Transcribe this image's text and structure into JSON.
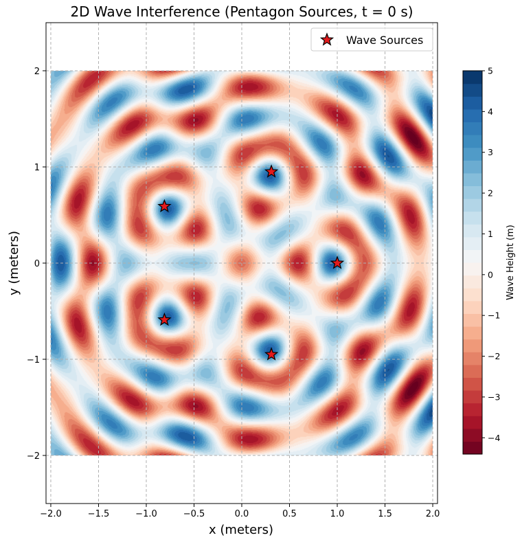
{
  "chart_data": [
    {
      "type": "heatmap",
      "title": "2D Wave Interference (Pentagon Sources, t = 0 s)",
      "xlabel": "x (meters)",
      "ylabel": "y (meters)",
      "xlim": [
        -2.05,
        2.05
      ],
      "ylim": [
        -2.5,
        2.5
      ],
      "field_extent": {
        "x": [
          -2,
          2
        ],
        "y": [
          -2,
          2
        ]
      },
      "x_ticks": [
        "−2.0",
        "−1.5",
        "−1.0",
        "−0.5",
        "0.0",
        "0.5",
        "1.0",
        "1.5",
        "2.0"
      ],
      "x_tick_values": [
        -2,
        -1.5,
        -1,
        -0.5,
        0,
        0.5,
        1,
        1.5,
        2
      ],
      "y_ticks": [
        "−2",
        "−1",
        "0",
        "1",
        "2"
      ],
      "y_tick_values": [
        -2,
        -1,
        0,
        1,
        2
      ],
      "grid": true,
      "legend_position": "top-right",
      "wave": {
        "wavenumber": 10.5,
        "amplitude": 1
      },
      "series": [
        {
          "name": "Wave Sources",
          "marker": "star",
          "color": "#e31a1c",
          "points": [
            {
              "x": 1.0,
              "y": 0.0
            },
            {
              "x": 0.31,
              "y": 0.95
            },
            {
              "x": -0.81,
              "y": 0.59
            },
            {
              "x": -0.81,
              "y": -0.59
            },
            {
              "x": 0.31,
              "y": -0.95
            }
          ]
        }
      ]
    },
    {
      "type": "colorbar",
      "label": "Wave Height (m)",
      "range": [
        -4.4,
        5
      ],
      "tick_values": [
        5,
        4,
        3,
        2,
        1,
        0,
        -1,
        -2,
        -3,
        -4
      ],
      "tick_labels": [
        "5",
        "4",
        "3",
        "2",
        "1",
        "0",
        "−1",
        "−2",
        "−3",
        "−4"
      ],
      "colormap": "RdBu",
      "colormap_stops": [
        "#67001f",
        "#b2182b",
        "#d6604d",
        "#f4a582",
        "#fddbc7",
        "#f7f7f7",
        "#d1e5f0",
        "#92c5de",
        "#4393c3",
        "#2166ac",
        "#053061"
      ]
    }
  ]
}
